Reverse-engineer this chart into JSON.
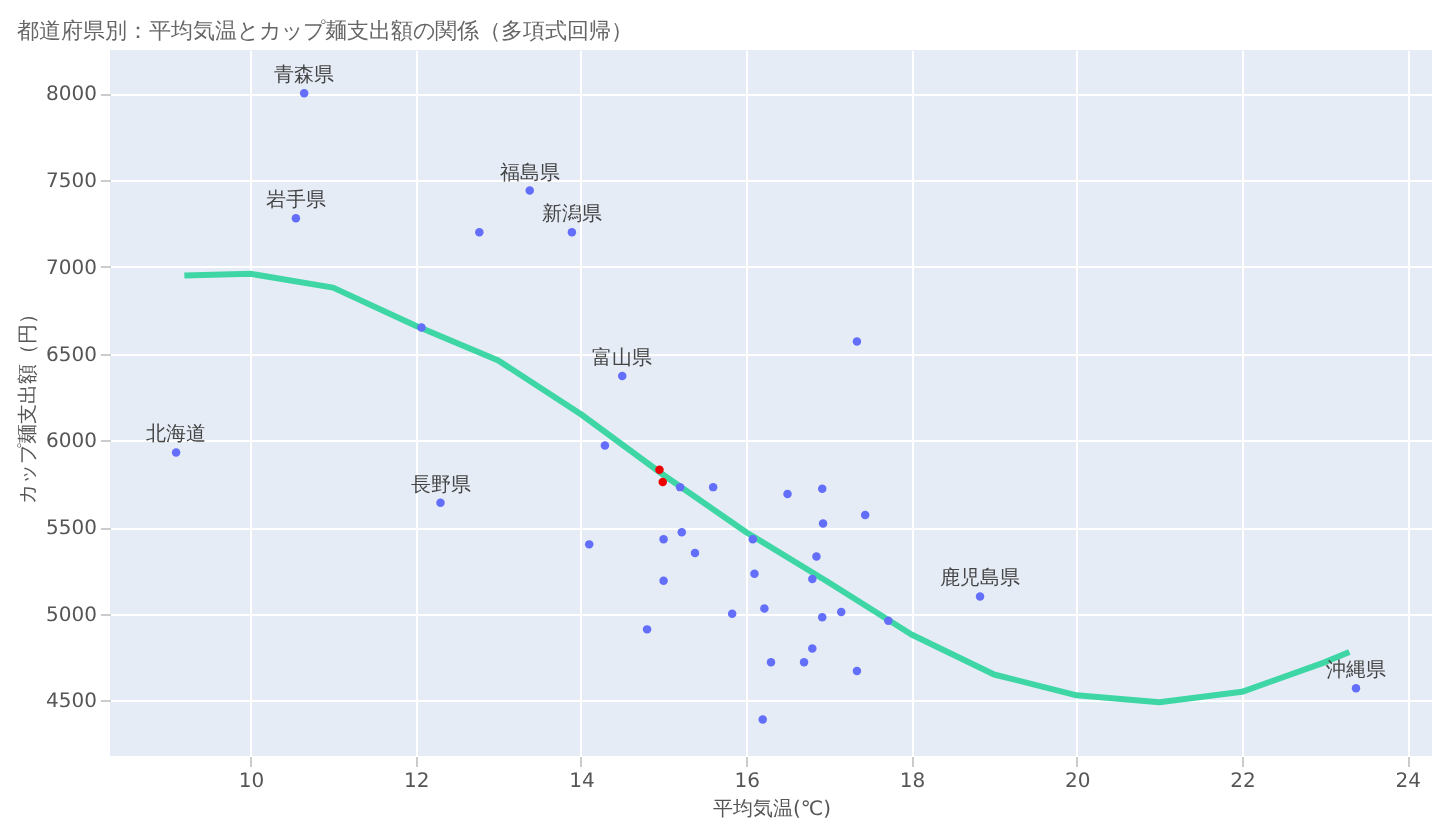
{
  "chart_data": {
    "type": "scatter",
    "title": "都道府県別：平均気温とカップ麺支出額の関係（多項式回帰）",
    "xlabel": "平均気温(℃)",
    "ylabel": "カップ麺支出額（円）",
    "xlim": [
      8.3,
      24.3
    ],
    "xticks": [
      10,
      12,
      14,
      16,
      18,
      20,
      22,
      24
    ],
    "ylim": [
      4180,
      8250
    ],
    "yticks": [
      4500,
      5000,
      5500,
      6000,
      6500,
      7000,
      7500,
      8000
    ],
    "grid": true,
    "marker": "circle",
    "series": [
      {
        "type": "scatter",
        "color": "#636efa",
        "x": [
          9.1,
          10.65,
          10.55,
          12.07,
          12.3,
          12.77,
          13.38,
          13.89,
          14.5,
          14.29,
          14.1,
          14.8,
          15.6,
          15.2,
          15.0,
          15.38,
          15.0,
          15.22,
          15.83,
          16.3,
          16.2,
          16.1,
          16.22,
          16.08,
          16.5,
          16.92,
          16.93,
          16.85,
          17.44,
          17.34,
          17.15,
          16.92,
          16.7,
          16.8,
          17.34,
          16.8,
          17.72,
          18.83,
          23.38
        ],
        "values": [
          5930,
          8000,
          7280,
          6650,
          5640,
          7200,
          7440,
          7200,
          6370,
          5970,
          5400,
          4910,
          5730,
          5730,
          5430,
          5350,
          5190,
          5470,
          5000,
          4720,
          4390,
          5230,
          5030,
          5430,
          5690,
          5720,
          5520,
          5330,
          5570,
          6570,
          5010,
          4980,
          4720,
          4800,
          4670,
          5200,
          4960,
          5100,
          4570
        ]
      },
      {
        "type": "scatter",
        "color": "#ef0000",
        "x": [
          14.99,
          14.95
        ],
        "values": [
          5760,
          5830
        ]
      },
      {
        "type": "line",
        "color": "#3fd6a6",
        "line_style": "solid",
        "marker": "none",
        "x": [
          9.2,
          10,
          11,
          12,
          13,
          14,
          15,
          16,
          17,
          18,
          19,
          20,
          21,
          22,
          23,
          23.3
        ],
        "values": [
          6950,
          6960,
          6880,
          6660,
          6460,
          6150,
          5800,
          5470,
          5180,
          4880,
          4650,
          4530,
          4490,
          4550,
          4720,
          4780
        ]
      }
    ],
    "annotations": [
      {
        "text": "北海道",
        "x": 9.1,
        "y": 5930
      },
      {
        "text": "青森県",
        "x": 10.65,
        "y": 8000
      },
      {
        "text": "岩手県",
        "x": 10.55,
        "y": 7280
      },
      {
        "text": "長野県",
        "x": 12.3,
        "y": 5640
      },
      {
        "text": "福島県",
        "x": 13.38,
        "y": 7440
      },
      {
        "text": "新潟県",
        "x": 13.89,
        "y": 7200
      },
      {
        "text": "富山県",
        "x": 14.5,
        "y": 6370
      },
      {
        "text": "鹿児島県",
        "x": 18.83,
        "y": 5100
      },
      {
        "text": "沖縄県",
        "x": 23.38,
        "y": 4570
      }
    ]
  }
}
